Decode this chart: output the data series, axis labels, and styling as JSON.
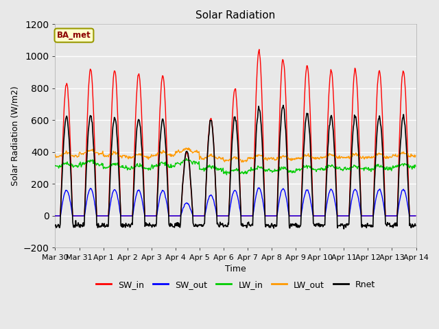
{
  "title": "Solar Radiation",
  "ylabel": "Solar Radiation (W/m2)",
  "xlabel": "Time",
  "station_label": "BA_met",
  "ylim": [
    -200,
    1200
  ],
  "xlim_days": [
    0,
    15
  ],
  "tick_labels": [
    "Mar 30",
    "Mar 31",
    "Apr 1",
    "Apr 2",
    "Apr 3",
    "Apr 4",
    "Apr 5",
    "Apr 6",
    "Apr 7",
    "Apr 8",
    "Apr 9",
    "Apr 10",
    "Apr 11",
    "Apr 12",
    "Apr 13",
    "Apr 14"
  ],
  "SW_in_peaks": [
    830,
    920,
    910,
    890,
    880,
    400,
    610,
    800,
    1030,
    980,
    940,
    910,
    920,
    910,
    910
  ],
  "SW_out_peaks": [
    160,
    170,
    165,
    160,
    160,
    80,
    130,
    160,
    175,
    170,
    160,
    165,
    165,
    165,
    165
  ],
  "LW_in_base": [
    310,
    325,
    305,
    295,
    310,
    330,
    290,
    270,
    285,
    280,
    290,
    295,
    295,
    295,
    305
  ],
  "LW_out_base": [
    375,
    390,
    375,
    365,
    380,
    400,
    360,
    345,
    360,
    355,
    360,
    365,
    365,
    365,
    375
  ],
  "Rnet_peaks": [
    620,
    630,
    610,
    605,
    600,
    405,
    600,
    620,
    680,
    690,
    645,
    625,
    625,
    620,
    625
  ],
  "colors": {
    "SW_in": "#ff0000",
    "SW_out": "#0000ff",
    "LW_in": "#00cc00",
    "LW_out": "#ff9900",
    "Rnet": "#000000"
  },
  "background_color": "#e8e8e8",
  "plot_bg": "#e8e8e8",
  "grid_color": "#ffffff",
  "title_fontsize": 11,
  "label_fontsize": 9,
  "tick_fontsize": 8
}
